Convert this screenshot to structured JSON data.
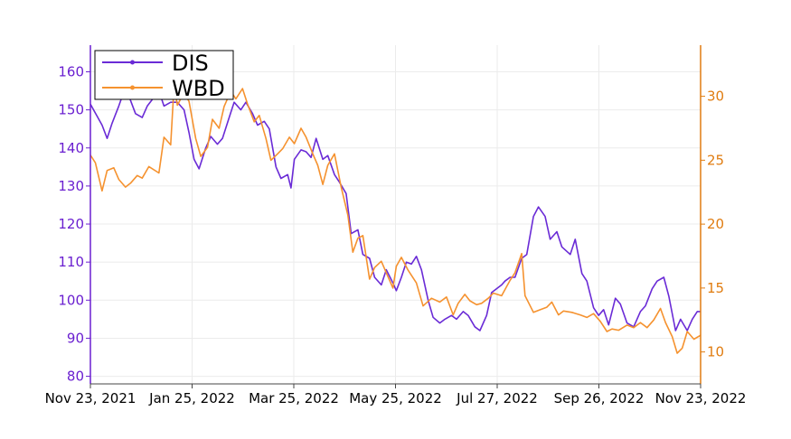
{
  "chart_data": {
    "type": "line",
    "x_ticks": [
      "Nov 23, 2021",
      "Jan 25, 2022",
      "Mar 25, 2022",
      "May 25, 2022",
      "Jul 27, 2022",
      "Sep 26, 2022",
      "Nov 23, 2022"
    ],
    "x_range": [
      "2021-11-23",
      "2022-11-23"
    ],
    "y_left": {
      "range": [
        78,
        167
      ],
      "ticks": [
        80,
        90,
        100,
        110,
        120,
        130,
        140,
        150,
        160
      ],
      "color": "#6a1fd0"
    },
    "y_right": {
      "range": [
        7.5,
        34
      ],
      "ticks": [
        10,
        15,
        20,
        25,
        30
      ],
      "color": "#e07c10"
    },
    "grid": true,
    "legend_position": "top-left",
    "series": [
      {
        "name": "DIS",
        "axis": "left",
        "color": "#6a2bd6",
        "points": [
          [
            "2021-11-23",
            151.5
          ],
          [
            "2021-11-30",
            146
          ],
          [
            "2021-12-03",
            142.5
          ],
          [
            "2021-12-06",
            146.5
          ],
          [
            "2021-12-10",
            151
          ],
          [
            "2021-12-14",
            156
          ],
          [
            "2021-12-20",
            149
          ],
          [
            "2021-12-24",
            148
          ],
          [
            "2021-12-27",
            151
          ],
          [
            "2022-01-03",
            155
          ],
          [
            "2022-01-06",
            151
          ],
          [
            "2022-01-10",
            152
          ],
          [
            "2022-01-14",
            152
          ],
          [
            "2022-01-18",
            150
          ],
          [
            "2022-01-21",
            144
          ],
          [
            "2022-01-24",
            137
          ],
          [
            "2022-01-27",
            134.5
          ],
          [
            "2022-01-31",
            140
          ],
          [
            "2022-02-03",
            143
          ],
          [
            "2022-02-07",
            141
          ],
          [
            "2022-02-10",
            142.5
          ],
          [
            "2022-02-14",
            148
          ],
          [
            "2022-02-17",
            152
          ],
          [
            "2022-02-21",
            150
          ],
          [
            "2022-02-24",
            152
          ],
          [
            "2022-02-28",
            149
          ],
          [
            "2022-03-03",
            146
          ],
          [
            "2022-03-07",
            147
          ],
          [
            "2022-03-10",
            145
          ],
          [
            "2022-03-14",
            135
          ],
          [
            "2022-03-17",
            132
          ],
          [
            "2022-03-21",
            133
          ],
          [
            "2022-03-23",
            129.5
          ],
          [
            "2022-03-25",
            137
          ],
          [
            "2022-03-29",
            139.5
          ],
          [
            "2022-04-01",
            139
          ],
          [
            "2022-04-04",
            137.5
          ],
          [
            "2022-04-07",
            142.5
          ],
          [
            "2022-04-11",
            137
          ],
          [
            "2022-04-14",
            138
          ],
          [
            "2022-04-18",
            133
          ],
          [
            "2022-04-21",
            131
          ],
          [
            "2022-04-25",
            128
          ],
          [
            "2022-04-28",
            117.5
          ],
          [
            "2022-05-02",
            118.5
          ],
          [
            "2022-05-05",
            112
          ],
          [
            "2022-05-09",
            111
          ],
          [
            "2022-05-12",
            106
          ],
          [
            "2022-05-16",
            104
          ],
          [
            "2022-05-19",
            108
          ],
          [
            "2022-05-23",
            104.5
          ],
          [
            "2022-05-25",
            102.5
          ],
          [
            "2022-05-28",
            106
          ],
          [
            "2022-05-31",
            110
          ],
          [
            "2022-06-03",
            109.5
          ],
          [
            "2022-06-06",
            111.5
          ],
          [
            "2022-06-09",
            108
          ],
          [
            "2022-06-13",
            100
          ],
          [
            "2022-06-16",
            95.5
          ],
          [
            "2022-06-20",
            94
          ],
          [
            "2022-06-23",
            95
          ],
          [
            "2022-06-27",
            96
          ],
          [
            "2022-06-30",
            95
          ],
          [
            "2022-07-04",
            97
          ],
          [
            "2022-07-07",
            96
          ],
          [
            "2022-07-11",
            93
          ],
          [
            "2022-07-14",
            92
          ],
          [
            "2022-07-18",
            96
          ],
          [
            "2022-07-21",
            102
          ],
          [
            "2022-07-27",
            104
          ],
          [
            "2022-07-29",
            105
          ],
          [
            "2022-08-01",
            106
          ],
          [
            "2022-08-04",
            106
          ],
          [
            "2022-08-08",
            111
          ],
          [
            "2022-08-11",
            112
          ],
          [
            "2022-08-15",
            122
          ],
          [
            "2022-08-18",
            124.5
          ],
          [
            "2022-08-22",
            122
          ],
          [
            "2022-08-25",
            116
          ],
          [
            "2022-08-29",
            118
          ],
          [
            "2022-09-01",
            114
          ],
          [
            "2022-09-06",
            112
          ],
          [
            "2022-09-09",
            116
          ],
          [
            "2022-09-13",
            107
          ],
          [
            "2022-09-16",
            105
          ],
          [
            "2022-09-20",
            98
          ],
          [
            "2022-09-23",
            96
          ],
          [
            "2022-09-26",
            97.5
          ],
          [
            "2022-09-29",
            93.5
          ],
          [
            "2022-10-03",
            100.5
          ],
          [
            "2022-10-06",
            99
          ],
          [
            "2022-10-10",
            94
          ],
          [
            "2022-10-14",
            93
          ],
          [
            "2022-10-18",
            97
          ],
          [
            "2022-10-21",
            98.5
          ],
          [
            "2022-10-25",
            103
          ],
          [
            "2022-10-28",
            105
          ],
          [
            "2022-11-01",
            106
          ],
          [
            "2022-11-04",
            101
          ],
          [
            "2022-11-08",
            92
          ],
          [
            "2022-11-11",
            95
          ],
          [
            "2022-11-15",
            92
          ],
          [
            "2022-11-18",
            95
          ],
          [
            "2022-11-21",
            97
          ],
          [
            "2022-11-23",
            97
          ]
        ]
      },
      {
        "name": "WBD",
        "axis": "right",
        "color": "#f5922f",
        "points": [
          [
            "2021-11-23",
            25.4
          ],
          [
            "2021-11-26",
            24.8
          ],
          [
            "2021-11-30",
            22.6
          ],
          [
            "2021-12-03",
            24.2
          ],
          [
            "2021-12-07",
            24.4
          ],
          [
            "2021-12-10",
            23.5
          ],
          [
            "2021-12-14",
            22.9
          ],
          [
            "2021-12-17",
            23.2
          ],
          [
            "2021-12-21",
            23.8
          ],
          [
            "2021-12-24",
            23.6
          ],
          [
            "2021-12-28",
            24.5
          ],
          [
            "2022-01-03",
            24.0
          ],
          [
            "2022-01-06",
            26.8
          ],
          [
            "2022-01-10",
            26.2
          ],
          [
            "2022-01-12",
            30.8
          ],
          [
            "2022-01-14",
            29.3
          ],
          [
            "2022-01-18",
            30.3
          ],
          [
            "2022-01-21",
            29.6
          ],
          [
            "2022-01-25",
            26.7
          ],
          [
            "2022-01-28",
            25.3
          ],
          [
            "2022-02-01",
            26.0
          ],
          [
            "2022-02-04",
            28.2
          ],
          [
            "2022-02-08",
            27.5
          ],
          [
            "2022-02-11",
            29.2
          ],
          [
            "2022-02-15",
            30.4
          ],
          [
            "2022-02-18",
            29.8
          ],
          [
            "2022-02-22",
            30.6
          ],
          [
            "2022-02-25",
            29.4
          ],
          [
            "2022-03-01",
            28.0
          ],
          [
            "2022-03-04",
            28.5
          ],
          [
            "2022-03-08",
            26.7
          ],
          [
            "2022-03-11",
            25.0
          ],
          [
            "2022-03-15",
            25.5
          ],
          [
            "2022-03-18",
            25.9
          ],
          [
            "2022-03-22",
            26.8
          ],
          [
            "2022-03-25",
            26.3
          ],
          [
            "2022-03-29",
            27.5
          ],
          [
            "2022-04-01",
            26.8
          ],
          [
            "2022-04-05",
            25.5
          ],
          [
            "2022-04-08",
            24.6
          ],
          [
            "2022-04-11",
            23.1
          ],
          [
            "2022-04-14",
            24.6
          ],
          [
            "2022-04-18",
            25.5
          ],
          [
            "2022-04-22",
            22.9
          ],
          [
            "2022-04-26",
            20.7
          ],
          [
            "2022-04-29",
            17.8
          ],
          [
            "2022-05-02",
            18.9
          ],
          [
            "2022-05-05",
            19.1
          ],
          [
            "2022-05-09",
            15.7
          ],
          [
            "2022-05-12",
            16.6
          ],
          [
            "2022-05-16",
            17.1
          ],
          [
            "2022-05-19",
            16.2
          ],
          [
            "2022-05-23",
            15.0
          ],
          [
            "2022-05-25",
            16.7
          ],
          [
            "2022-05-28",
            17.4
          ],
          [
            "2022-06-01",
            16.4
          ],
          [
            "2022-06-06",
            15.4
          ],
          [
            "2022-06-10",
            13.6
          ],
          [
            "2022-06-15",
            14.2
          ],
          [
            "2022-06-20",
            13.9
          ],
          [
            "2022-06-24",
            14.3
          ],
          [
            "2022-06-28",
            12.9
          ],
          [
            "2022-07-01",
            13.8
          ],
          [
            "2022-07-05",
            14.5
          ],
          [
            "2022-07-08",
            14.0
          ],
          [
            "2022-07-12",
            13.7
          ],
          [
            "2022-07-15",
            13.8
          ],
          [
            "2022-07-19",
            14.2
          ],
          [
            "2022-07-22",
            14.6
          ],
          [
            "2022-07-27",
            14.4
          ],
          [
            "2022-08-01",
            15.6
          ],
          [
            "2022-08-04",
            16.2
          ],
          [
            "2022-08-08",
            17.7
          ],
          [
            "2022-08-10",
            14.4
          ],
          [
            "2022-08-15",
            13.1
          ],
          [
            "2022-08-19",
            13.3
          ],
          [
            "2022-08-23",
            13.5
          ],
          [
            "2022-08-26",
            13.9
          ],
          [
            "2022-08-30",
            12.9
          ],
          [
            "2022-09-02",
            13.2
          ],
          [
            "2022-09-07",
            13.1
          ],
          [
            "2022-09-12",
            12.9
          ],
          [
            "2022-09-16",
            12.7
          ],
          [
            "2022-09-20",
            13.0
          ],
          [
            "2022-09-24",
            12.4
          ],
          [
            "2022-09-28",
            11.6
          ],
          [
            "2022-10-01",
            11.8
          ],
          [
            "2022-10-05",
            11.7
          ],
          [
            "2022-10-10",
            12.1
          ],
          [
            "2022-10-14",
            11.9
          ],
          [
            "2022-10-18",
            12.3
          ],
          [
            "2022-10-22",
            11.9
          ],
          [
            "2022-10-26",
            12.5
          ],
          [
            "2022-10-30",
            13.4
          ],
          [
            "2022-11-02",
            12.3
          ],
          [
            "2022-11-06",
            11.2
          ],
          [
            "2022-11-09",
            9.9
          ],
          [
            "2022-11-12",
            10.3
          ],
          [
            "2022-11-15",
            11.6
          ],
          [
            "2022-11-19",
            11.0
          ],
          [
            "2022-11-23",
            11.3
          ]
        ]
      }
    ]
  }
}
